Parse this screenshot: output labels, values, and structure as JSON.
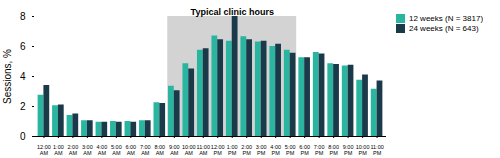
{
  "chart_data": {
    "type": "bar",
    "categories": [
      "12:00\nAM",
      "1:00\nAM",
      "2:00\nAM",
      "3:00\nAM",
      "4:00\nAM",
      "5:00\nAM",
      "6:00\nAM",
      "7:00\nAM",
      "8:00\nAM",
      "9:00\nAM",
      "10:00\nAM",
      "11:00\nAM",
      "12:00\nPM",
      "1:00\nPM",
      "2:00\nPM",
      "3:00\nPM",
      "4:00\nPM",
      "5:00\nPM",
      "6:00\nPM",
      "7:00\nPM",
      "8:00\nPM",
      "9:00\nPM",
      "10:00\nPM",
      "11:00\nPM"
    ],
    "series": [
      {
        "name": "12 weeks (N = 3817)",
        "color": "#2ab5a0",
        "values": [
          2.75,
          2.05,
          1.4,
          1.05,
          0.95,
          1.0,
          1.0,
          1.05,
          2.25,
          3.35,
          4.85,
          5.75,
          6.7,
          6.35,
          6.65,
          6.3,
          6.0,
          5.75,
          5.25,
          5.6,
          4.85,
          4.7,
          3.75,
          3.15
        ]
      },
      {
        "name": "24 weeks (N = 643)",
        "color": "#1a3a4a",
        "values": [
          3.4,
          2.1,
          1.5,
          1.05,
          0.95,
          0.95,
          0.95,
          1.05,
          2.2,
          3.05,
          4.5,
          5.85,
          6.45,
          8.0,
          6.45,
          6.35,
          6.15,
          5.55,
          5.25,
          5.5,
          4.8,
          4.75,
          4.1,
          3.7
        ]
      }
    ],
    "ylabel": "Sessions, %",
    "ylim": [
      0,
      8
    ],
    "yticks": [
      0,
      2,
      4,
      6,
      8
    ],
    "grid": false,
    "legend": "right",
    "annotations": [
      {
        "text": "Typical clinic hours",
        "x_from": "9:00\nAM",
        "x_to": "5:00\nPM",
        "color": "#d3d3d3"
      }
    ]
  }
}
